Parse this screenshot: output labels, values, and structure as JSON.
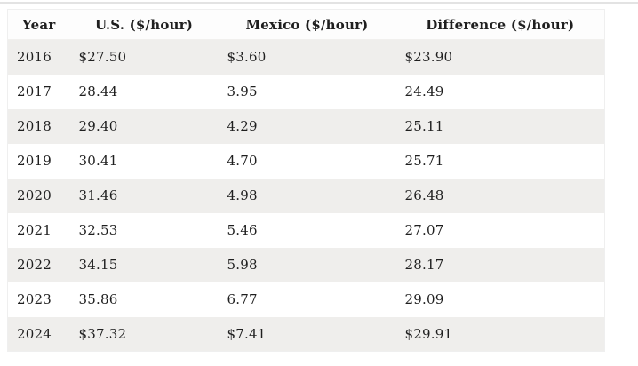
{
  "page": {
    "background": "#ffffff",
    "top_divider_color": "#e3e3e3"
  },
  "table_style": {
    "zebra_row_color": "#efeeec",
    "header_background": "#fdfdfd",
    "border_color": "#efefef",
    "text_color": "#1f1f1f"
  },
  "chart_data": {
    "type": "table",
    "title": "",
    "columns": [
      "Year",
      "U.S. ($/hour)",
      "Mexico ($/hour)",
      "Difference ($/hour)"
    ],
    "rows": [
      [
        "2016",
        "$27.50",
        "$3.60",
        "$23.90"
      ],
      [
        "2017",
        "28.44",
        "3.95",
        "24.49"
      ],
      [
        "2018",
        "29.40",
        "4.29",
        "25.11"
      ],
      [
        "2019",
        "30.41",
        "4.70",
        "25.71"
      ],
      [
        "2020",
        "31.46",
        "4.98",
        "26.48"
      ],
      [
        "2021",
        "32.53",
        "5.46",
        "27.07"
      ],
      [
        "2022",
        "34.15",
        "5.98",
        "28.17"
      ],
      [
        "2023",
        "35.86",
        "6.77",
        "29.09"
      ],
      [
        "2024",
        "$37.32",
        "$7.41",
        "$29.91"
      ]
    ],
    "categories": [
      "2016",
      "2017",
      "2018",
      "2019",
      "2020",
      "2021",
      "2022",
      "2023",
      "2024"
    ],
    "series": [
      {
        "name": "U.S. ($/hour)",
        "values": [
          27.5,
          28.44,
          29.4,
          30.41,
          31.46,
          32.53,
          34.15,
          35.86,
          37.32
        ]
      },
      {
        "name": "Mexico ($/hour)",
        "values": [
          3.6,
          3.95,
          4.29,
          4.7,
          4.98,
          5.46,
          5.98,
          6.77,
          7.41
        ]
      },
      {
        "name": "Difference ($/hour)",
        "values": [
          23.9,
          24.49,
          25.11,
          25.71,
          26.48,
          27.07,
          28.17,
          29.09,
          29.91
        ]
      }
    ],
    "layout_hints": {
      "zebra_striped_rows": [
        0,
        2,
        4,
        6,
        8
      ],
      "header_alignment": "center",
      "cell_alignment": "left"
    }
  }
}
